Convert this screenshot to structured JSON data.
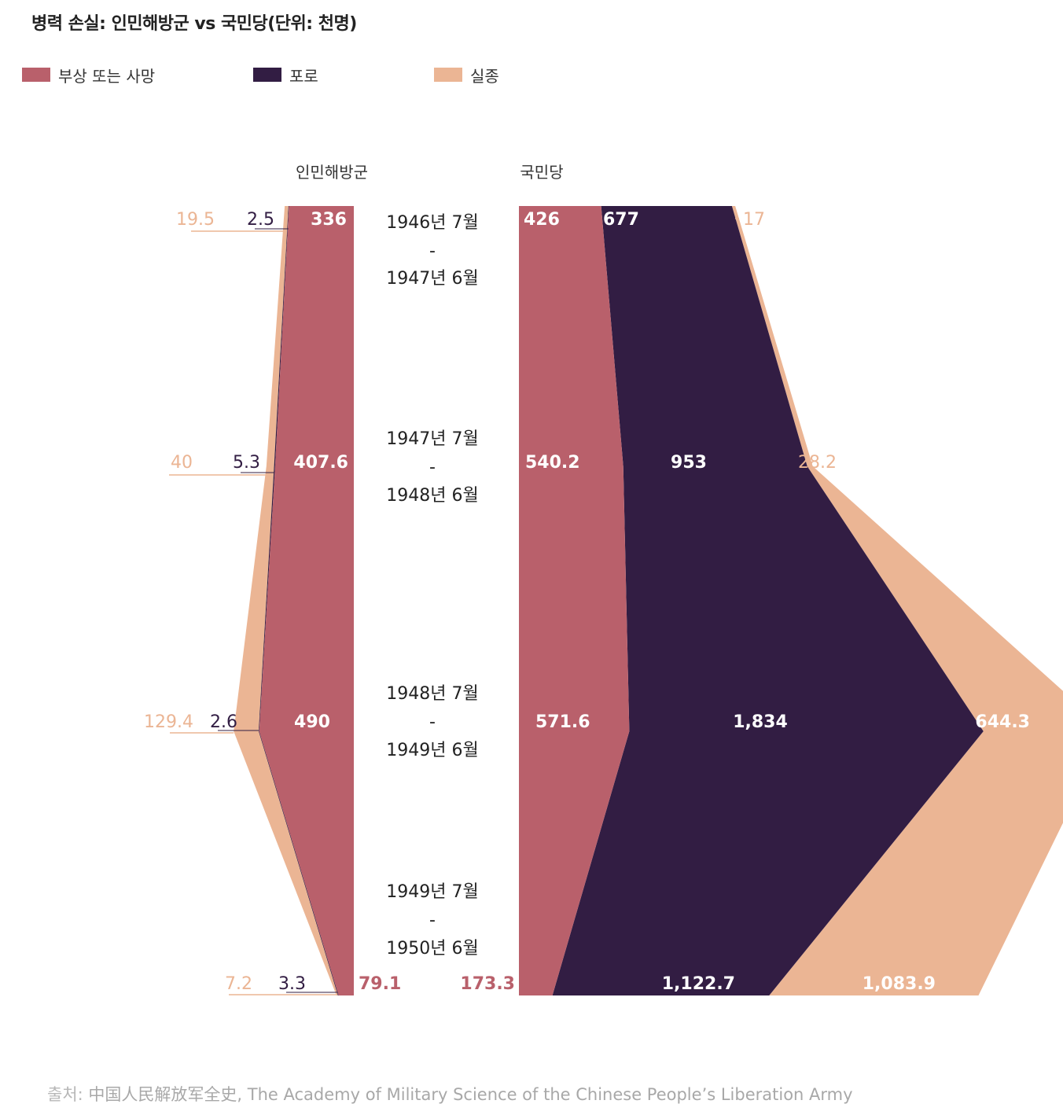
{
  "title": "병력 손실: 인민해방군 vs 국민당(단위: 천명)",
  "legend": [
    {
      "label": "부상 또는 사망",
      "color": "#b9606b"
    },
    {
      "label": "포로",
      "color": "#321d43"
    },
    {
      "label": "실종",
      "color": "#ebb594"
    }
  ],
  "source": {
    "label": "출처:",
    "text": "中国人民解放军全史, The Academy of Military Science of the Chinese People’s Liberation Army"
  },
  "chart_data": {
    "type": "area",
    "title": "병력 손실: 인민해방군 vs 국민당(단위: 천명)",
    "unit": "천명",
    "groups": [
      "인민해방군",
      "국민당"
    ],
    "periods": [
      {
        "start": "1946년 7월",
        "sep": "-",
        "end": "1947년 6월"
      },
      {
        "start": "1947년 7월",
        "sep": "-",
        "end": "1948년 6월"
      },
      {
        "start": "1948년 7월",
        "sep": "-",
        "end": "1949년 6월"
      },
      {
        "start": "1949년 7월",
        "sep": "-",
        "end": "1950년 6월"
      }
    ],
    "series_names": [
      "부상 또는 사망",
      "포로",
      "실종"
    ],
    "colors": {
      "casualty": "#b9606b",
      "captured": "#321d43",
      "missing": "#ebb594"
    },
    "pla": {
      "casualty": [
        336,
        407.6,
        490,
        79.1
      ],
      "captured": [
        2.5,
        5.3,
        2.6,
        3.3
      ],
      "missing": [
        19.5,
        40,
        129.4,
        7.2
      ],
      "casualty_labels": [
        "336",
        "407.6",
        "490",
        "79.1"
      ],
      "captured_labels": [
        "2.5",
        "5.3",
        "2.6",
        "3.3"
      ],
      "missing_labels": [
        "19.5",
        "40",
        "129.4",
        "7.2"
      ]
    },
    "kmt": {
      "casualty": [
        426,
        540.2,
        571.6,
        173.3
      ],
      "captured": [
        677,
        953,
        1834,
        1122.7
      ],
      "missing": [
        17,
        28.2,
        644.3,
        1083.9
      ],
      "casualty_labels": [
        "426",
        "540.2",
        "571.6",
        "173.3"
      ],
      "captured_labels": [
        "677",
        "953",
        "1,834",
        "1,122.7"
      ],
      "missing_labels": [
        "17",
        "28.2",
        "644.3",
        "1,083.9"
      ]
    }
  }
}
